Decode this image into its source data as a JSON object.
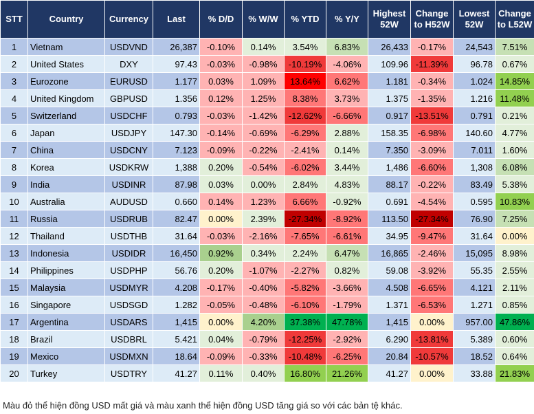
{
  "headers": [
    "STT",
    "Country",
    "Currency",
    "Last",
    "% D/D",
    "% W/W",
    "% YTD",
    "% Y/Y",
    "Highest 52W",
    "Change to H52W",
    "Lowest 52W",
    "Change to L52W"
  ],
  "colors": {
    "header_bg": "#203764",
    "row_odd": "#b4c6e7",
    "row_even": "#ddebf7",
    "r1": "#ffb3b3",
    "r2": "#ff7777",
    "r3": "#f03a3a",
    "r4": "#ff0000",
    "r5": "#c00000",
    "g1": "#e2efda",
    "g2": "#c6e0b4",
    "g3": "#a9d08e",
    "g4": "#92d050",
    "g5": "#00b050",
    "y": "#fff2cc"
  },
  "rows": [
    {
      "stt": "1",
      "country": "Vietnam",
      "currency": "USDVND",
      "last": "26,387",
      "dd": "-0.10%",
      "ww": "0.14%",
      "ytd": "3.54%",
      "yy": "6.83%",
      "high": "26,433",
      "chh": "-0.17%",
      "low": "24,543",
      "chl": "7.51%",
      "shade": [
        "r1",
        "g1",
        "g1",
        "g2",
        "r1",
        "g2"
      ]
    },
    {
      "stt": "2",
      "country": "United States",
      "currency": "DXY",
      "last": "97.43",
      "dd": "-0.03%",
      "ww": "-0.98%",
      "ytd": "-10.19%",
      "yy": "-4.06%",
      "high": "109.96",
      "chh": "-11.39%",
      "low": "96.78",
      "chl": "0.67%",
      "shade": [
        "r1",
        "r1",
        "r3",
        "r1",
        "r3",
        "g1"
      ]
    },
    {
      "stt": "3",
      "country": "Eurozone",
      "currency": "EURUSD",
      "last": "1.177",
      "dd": "0.03%",
      "ww": "1.09%",
      "ytd": "13.64%",
      "yy": "6.62%",
      "high": "1.181",
      "chh": "-0.34%",
      "low": "1.024",
      "chl": "14.85%",
      "shade": [
        "r1",
        "r1",
        "r4",
        "r2",
        "r1",
        "g4"
      ]
    },
    {
      "stt": "4",
      "country": "United Kingdom",
      "currency": "GBPUSD",
      "last": "1.356",
      "dd": "0.12%",
      "ww": "1.25%",
      "ytd": "8.38%",
      "yy": "3.73%",
      "high": "1.375",
      "chh": "-1.35%",
      "low": "1.216",
      "chl": "11.48%",
      "shade": [
        "r1",
        "r1",
        "r2",
        "r1",
        "r1",
        "g4"
      ]
    },
    {
      "stt": "5",
      "country": "Switzerland",
      "currency": "USDCHF",
      "last": "0.793",
      "dd": "-0.03%",
      "ww": "-1.42%",
      "ytd": "-12.62%",
      "yy": "-6.66%",
      "high": "0.917",
      "chh": "-13.51%",
      "low": "0.791",
      "chl": "0.21%",
      "shade": [
        "r1",
        "r1",
        "r3",
        "r2",
        "r3",
        "g1"
      ]
    },
    {
      "stt": "6",
      "country": "Japan",
      "currency": "USDJPY",
      "last": "147.30",
      "dd": "-0.14%",
      "ww": "-0.69%",
      "ytd": "-6.29%",
      "yy": "2.88%",
      "high": "158.35",
      "chh": "-6.98%",
      "low": "140.60",
      "chl": "4.77%",
      "shade": [
        "r1",
        "r1",
        "r2",
        "g1",
        "r2",
        "g1"
      ]
    },
    {
      "stt": "7",
      "country": "China",
      "currency": "USDCNY",
      "last": "7.123",
      "dd": "-0.09%",
      "ww": "-0.22%",
      "ytd": "-2.41%",
      "yy": "0.14%",
      "high": "7.350",
      "chh": "-3.09%",
      "low": "7.011",
      "chl": "1.60%",
      "shade": [
        "r1",
        "r1",
        "r1",
        "g1",
        "r1",
        "g1"
      ]
    },
    {
      "stt": "8",
      "country": "Korea",
      "currency": "USDKRW",
      "last": "1,388",
      "dd": "0.20%",
      "ww": "-0.54%",
      "ytd": "-6.02%",
      "yy": "3.44%",
      "high": "1,486",
      "chh": "-6.60%",
      "low": "1,308",
      "chl": "6.08%",
      "shade": [
        "g1",
        "r1",
        "r2",
        "g1",
        "r2",
        "g2"
      ]
    },
    {
      "stt": "9",
      "country": "India",
      "currency": "USDINR",
      "last": "87.98",
      "dd": "0.03%",
      "ww": "0.00%",
      "ytd": "2.84%",
      "yy": "4.83%",
      "high": "88.17",
      "chh": "-0.22%",
      "low": "83.49",
      "chl": "5.38%",
      "shade": [
        "g1",
        "g1",
        "g1",
        "g1",
        "r1",
        "g1"
      ]
    },
    {
      "stt": "10",
      "country": "Australia",
      "currency": "AUDUSD",
      "last": "0.660",
      "dd": "0.14%",
      "ww": "1.23%",
      "ytd": "6.66%",
      "yy": "-0.92%",
      "high": "0.691",
      "chh": "-4.54%",
      "low": "0.595",
      "chl": "10.83%",
      "shade": [
        "r1",
        "r1",
        "r2",
        "g1",
        "r1",
        "g4"
      ]
    },
    {
      "stt": "11",
      "country": "Russia",
      "currency": "USDRUB",
      "last": "82.47",
      "dd": "0.00%",
      "ww": "2.39%",
      "ytd": "-27.34%",
      "yy": "-8.92%",
      "high": "113.50",
      "chh": "-27.34%",
      "low": "76.90",
      "chl": "7.25%",
      "shade": [
        "y",
        "g1",
        "r5",
        "r2",
        "r5",
        "g2"
      ]
    },
    {
      "stt": "12",
      "country": "Thailand",
      "currency": "USDTHB",
      "last": "31.64",
      "dd": "-0.03%",
      "ww": "-2.16%",
      "ytd": "-7.65%",
      "yy": "-6.61%",
      "high": "34.95",
      "chh": "-9.47%",
      "low": "31.64",
      "chl": "0.00%",
      "shade": [
        "r1",
        "r1",
        "r2",
        "r2",
        "r2",
        "y"
      ]
    },
    {
      "stt": "13",
      "country": "Indonesia",
      "currency": "USDIDR",
      "last": "16,450",
      "dd": "0.92%",
      "ww": "0.34%",
      "ytd": "2.24%",
      "yy": "6.47%",
      "high": "16,865",
      "chh": "-2.46%",
      "low": "15,095",
      "chl": "8.98%",
      "shade": [
        "g3",
        "g1",
        "g1",
        "g2",
        "r1",
        "g1"
      ]
    },
    {
      "stt": "14",
      "country": "Philippines",
      "currency": "USDPHP",
      "last": "56.76",
      "dd": "0.20%",
      "ww": "-1.07%",
      "ytd": "-2.27%",
      "yy": "0.82%",
      "high": "59.08",
      "chh": "-3.92%",
      "low": "55.35",
      "chl": "2.55%",
      "shade": [
        "g1",
        "r1",
        "r1",
        "g1",
        "r1",
        "g1"
      ]
    },
    {
      "stt": "15",
      "country": "Malaysia",
      "currency": "USDMYR",
      "last": "4.208",
      "dd": "-0.17%",
      "ww": "-0.40%",
      "ytd": "-5.82%",
      "yy": "-3.66%",
      "high": "4.508",
      "chh": "-6.65%",
      "low": "4.121",
      "chl": "2.11%",
      "shade": [
        "r1",
        "r1",
        "r2",
        "r1",
        "r2",
        "g1"
      ]
    },
    {
      "stt": "16",
      "country": "Singapore",
      "currency": "USDSGD",
      "last": "1.282",
      "dd": "-0.05%",
      "ww": "-0.48%",
      "ytd": "-6.10%",
      "yy": "-1.79%",
      "high": "1.371",
      "chh": "-6.53%",
      "low": "1.271",
      "chl": "0.85%",
      "shade": [
        "r1",
        "r1",
        "r2",
        "r1",
        "r2",
        "g1"
      ]
    },
    {
      "stt": "17",
      "country": "Argentina",
      "currency": "USDARS",
      "last": "1,415",
      "dd": "0.00%",
      "ww": "4.20%",
      "ytd": "37.38%",
      "yy": "47.78%",
      "high": "1,415",
      "chh": "0.00%",
      "low": "957.00",
      "chl": "47.86%",
      "shade": [
        "y",
        "g3",
        "g5",
        "g5",
        "y",
        "g5"
      ]
    },
    {
      "stt": "18",
      "country": "Brazil",
      "currency": "USDBRL",
      "last": "5.421",
      "dd": "0.04%",
      "ww": "-0.79%",
      "ytd": "-12.25%",
      "yy": "-2.92%",
      "high": "6.290",
      "chh": "-13.81%",
      "low": "5.389",
      "chl": "0.60%",
      "shade": [
        "g1",
        "r1",
        "r3",
        "r1",
        "r3",
        "g1"
      ]
    },
    {
      "stt": "19",
      "country": "Mexico",
      "currency": "USDMXN",
      "last": "18.64",
      "dd": "-0.09%",
      "ww": "-0.33%",
      "ytd": "-10.48%",
      "yy": "-6.25%",
      "high": "20.84",
      "chh": "-10.57%",
      "low": "18.52",
      "chl": "0.64%",
      "shade": [
        "r1",
        "r1",
        "r3",
        "r2",
        "r3",
        "g1"
      ]
    },
    {
      "stt": "20",
      "country": "Turkey",
      "currency": "USDTRY",
      "last": "41.27",
      "dd": "0.11%",
      "ww": "0.40%",
      "ytd": "16.80%",
      "yy": "21.26%",
      "high": "41.27",
      "chh": "0.00%",
      "low": "33.88",
      "chl": "21.83%",
      "shade": [
        "g1",
        "g1",
        "g4",
        "g4",
        "y",
        "g4"
      ]
    }
  ],
  "footnote": "Màu đỏ thể hiện đồng USD mất giá và màu xanh thể hiện đồng USD tăng giá so với các bản tệ khác."
}
